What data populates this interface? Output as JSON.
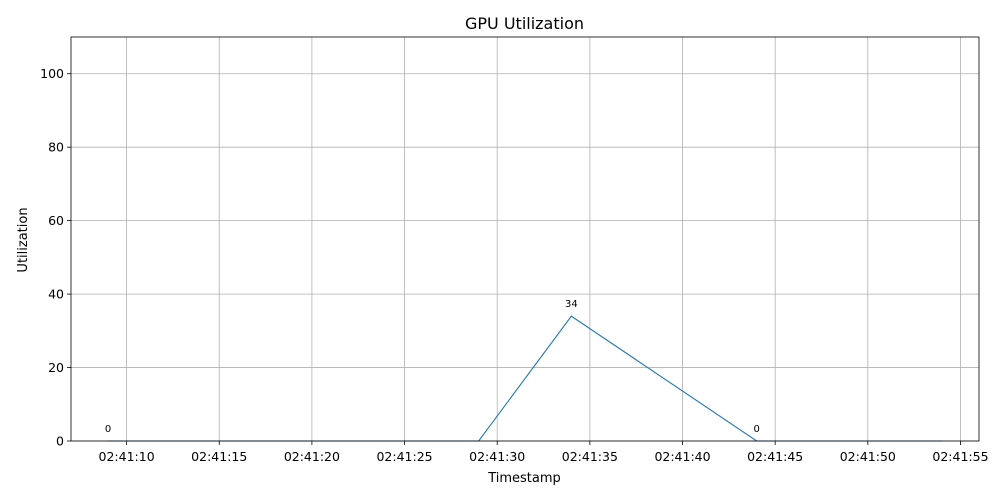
{
  "chart_data": {
    "type": "line",
    "title": "GPU Utilization",
    "xlabel": "Timestamp",
    "ylabel": "Utilization",
    "x": [
      "02:41:09",
      "02:41:14",
      "02:41:19",
      "02:41:24",
      "02:41:29",
      "02:41:34",
      "02:41:39",
      "02:41:44",
      "02:41:49",
      "02:41:54"
    ],
    "values": [
      0,
      0,
      0,
      0,
      0,
      34,
      17,
      0,
      0,
      0
    ],
    "xlim": [
      "02:41:07",
      "02:41:56"
    ],
    "x_ticks": [
      "02:41:10",
      "02:41:15",
      "02:41:20",
      "02:41:25",
      "02:41:30",
      "02:41:35",
      "02:41:40",
      "02:41:45",
      "02:41:50",
      "02:41:55"
    ],
    "ylim": [
      0,
      110
    ],
    "y_ticks": [
      0,
      20,
      40,
      60,
      80,
      100
    ],
    "data_labels": [
      {
        "x": "02:41:09",
        "text": "0"
      },
      {
        "x": "02:41:34",
        "text": "34"
      },
      {
        "x": "02:41:44",
        "text": "0"
      }
    ],
    "grid": true,
    "legend": "none",
    "line_color": "#1f77b4"
  }
}
